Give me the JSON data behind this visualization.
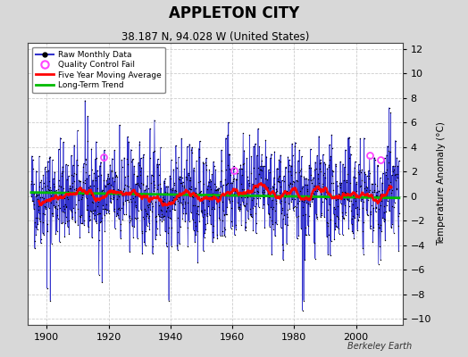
{
  "title": "APPLETON CITY",
  "subtitle": "38.187 N, 94.028 W (United States)",
  "ylabel": "Temperature Anomaly (°C)",
  "credit": "Berkeley Earth",
  "year_start": 1895,
  "year_end": 2013,
  "ylim": [
    -10.5,
    12.5
  ],
  "yticks": [
    -10,
    -8,
    -6,
    -4,
    -2,
    0,
    2,
    4,
    6,
    8,
    10,
    12
  ],
  "xticks": [
    1900,
    1920,
    1940,
    1960,
    1980,
    2000
  ],
  "fig_background_color": "#d8d8d8",
  "plot_background_color": "#ffffff",
  "grid_color": "#cccccc",
  "raw_line_color": "#3333cc",
  "raw_marker_color": "#000000",
  "raw_stem_color": "#aaaaee",
  "moving_avg_color": "#ff0000",
  "trend_color": "#00bb00",
  "qc_fail_color": "#ff44ff",
  "legend_entries": [
    "Raw Monthly Data",
    "Quality Control Fail",
    "Five Year Moving Average",
    "Long-Term Trend"
  ],
  "seed": 42
}
